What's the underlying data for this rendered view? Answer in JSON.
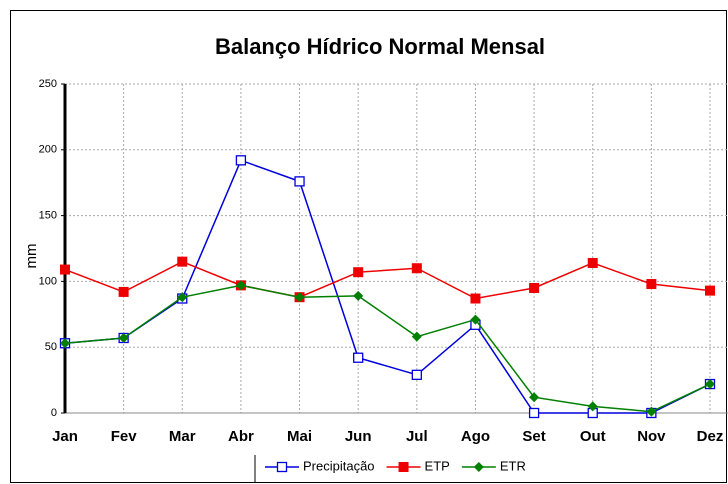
{
  "chart_data": {
    "type": "line",
    "title": "Balanço Hídrico Normal Mensal",
    "y_label": "mm",
    "categories": [
      "Jan",
      "Fev",
      "Mar",
      "Abr",
      "Mai",
      "Jun",
      "Jul",
      "Ago",
      "Set",
      "Out",
      "Nov",
      "Dez"
    ],
    "series": [
      {
        "name": "Precipitação",
        "color": "#0000dd",
        "marker": "open-square",
        "values": [
          53,
          57,
          87,
          192,
          176,
          42,
          29,
          67,
          0,
          0,
          0,
          22
        ]
      },
      {
        "name": "ETP",
        "color": "#ee0000",
        "marker": "square",
        "values": [
          109,
          92,
          115,
          97,
          88,
          107,
          110,
          87,
          95,
          114,
          98,
          93
        ]
      },
      {
        "name": "ETR",
        "color": "#008000",
        "marker": "diamond",
        "values": [
          53,
          57,
          88,
          97,
          88,
          89,
          58,
          71,
          12,
          5,
          1,
          22
        ]
      }
    ],
    "ylim": [
      0,
      250
    ],
    "yticks": [
      0,
      50,
      100,
      150,
      200,
      250
    ],
    "grid": true,
    "legend": "bottom"
  }
}
